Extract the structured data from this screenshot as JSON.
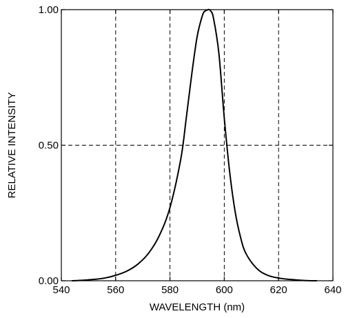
{
  "chart_data": {
    "type": "line",
    "title": "",
    "xlabel": "WAVELENGTH (nm)",
    "ylabel": "RELATIVE INTENSITY",
    "xlim": [
      540,
      640
    ],
    "ylim": [
      0,
      1
    ],
    "x_ticks": [
      540,
      560,
      580,
      600,
      620,
      640
    ],
    "x_tick_labels": [
      "540",
      "560",
      "580",
      "600",
      "620",
      "640"
    ],
    "y_ticks": [
      0,
      0.5,
      1
    ],
    "y_tick_labels": [
      "0.00",
      "0.50",
      "1.00"
    ],
    "grid": {
      "x": [
        560,
        580,
        600,
        620
      ],
      "y": [
        0.5
      ],
      "style": "dashed"
    },
    "legend": "none",
    "series": [
      {
        "color": "#000000",
        "x": [
          544,
          548,
          552,
          556,
          560,
          564,
          568,
          572,
          576,
          580,
          584,
          586,
          588,
          590,
          592,
          593,
          594,
          594.5,
          595,
          596,
          598,
          600,
          602,
          604,
          606,
          608,
          612,
          616,
          620,
          624,
          628,
          632,
          634
        ],
        "y": [
          0.0,
          0.002,
          0.005,
          0.01,
          0.02,
          0.035,
          0.06,
          0.1,
          0.165,
          0.27,
          0.45,
          0.6,
          0.76,
          0.9,
          0.98,
          0.995,
          1.0,
          1.0,
          0.995,
          0.97,
          0.84,
          0.6,
          0.4,
          0.255,
          0.16,
          0.1,
          0.045,
          0.02,
          0.01,
          0.005,
          0.002,
          0.0,
          0.0
        ]
      }
    ]
  }
}
